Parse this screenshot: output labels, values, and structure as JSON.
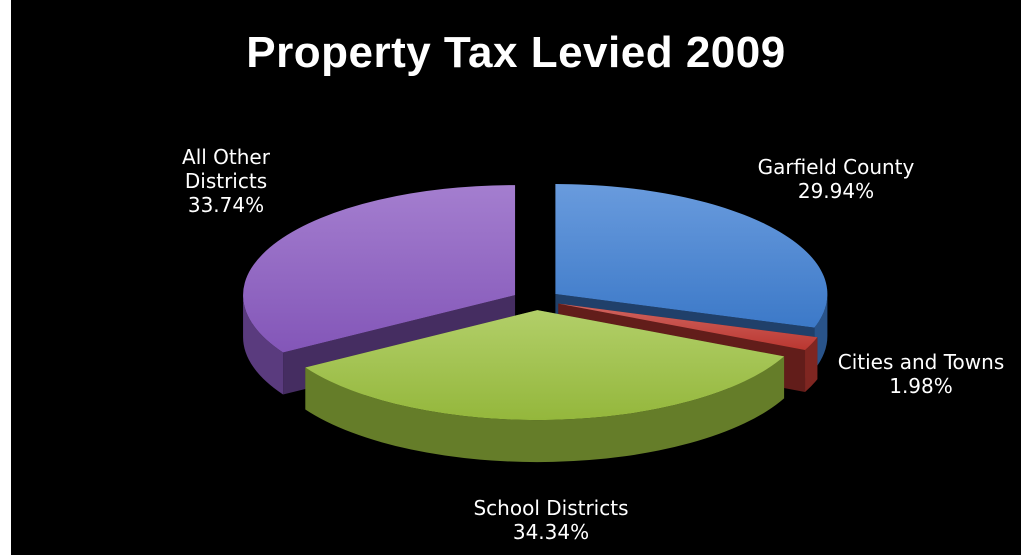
{
  "chart_data": {
    "type": "pie",
    "title": "Property Tax Levied 2009",
    "unit": "%",
    "slices": [
      {
        "key": "garfield",
        "name": "Garfield County",
        "value": 29.94,
        "value_label": "29.94%",
        "color": "#3f7fd3"
      },
      {
        "key": "cities",
        "name": "Cities and Towns",
        "value": 1.98,
        "value_label": "1.98%",
        "color": "#c43a33"
      },
      {
        "key": "school",
        "name": "School Districts",
        "value": 34.34,
        "value_label": "34.34%",
        "color": "#9cc13f"
      },
      {
        "key": "other",
        "name_lines": [
          "All Other",
          "Districts"
        ],
        "name": "All Other Districts",
        "value": 33.74,
        "value_label": "33.74%",
        "color": "#8a5ac2"
      }
    ],
    "style": "3d-exploded",
    "legend": "none"
  }
}
